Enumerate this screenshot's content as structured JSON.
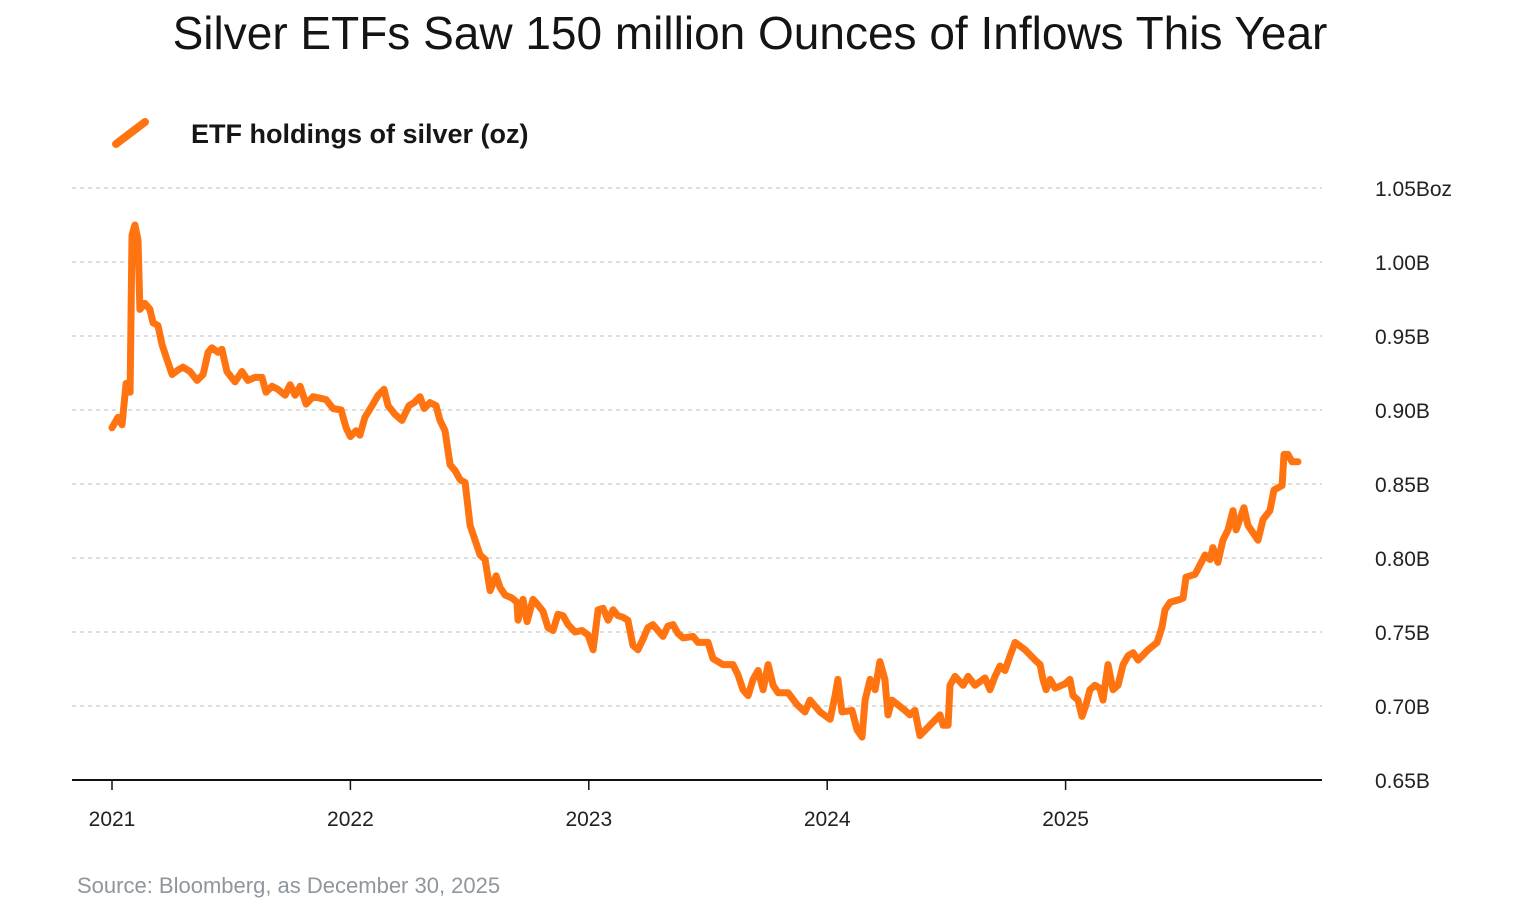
{
  "chart_data": {
    "type": "line",
    "title": "Silver ETFs Saw 150 million Ounces of Inflows This Year",
    "xlabel": "",
    "ylabel": "",
    "source": "Source: Bloomberg, as December 30, 2025",
    "legend": {
      "placement": "top-left",
      "entries": [
        "ETF holdings of silver (oz)"
      ]
    },
    "grid": true,
    "xlim": [
      2020.83,
      2026.07
    ],
    "ylim": [
      0.65,
      1.05
    ],
    "x_ticks": [
      2021,
      2022,
      2023,
      2024,
      2025
    ],
    "x_tick_labels": [
      "2021",
      "2022",
      "2023",
      "2024",
      "2025"
    ],
    "y_ticks": [
      0.65,
      0.7,
      0.75,
      0.8,
      0.85,
      0.9,
      0.95,
      1.0,
      1.05
    ],
    "y_tick_labels": [
      "0.65B",
      "0.70B",
      "0.75B",
      "0.80B",
      "0.85B",
      "0.90B",
      "0.95B",
      "1.00B",
      "1.05Boz"
    ],
    "series": [
      {
        "name": "ETF holdings of silver (oz)",
        "color": "#ff7410",
        "unit": "billion oz",
        "points": [
          [
            2021.0,
            0.888
          ],
          [
            2021.025,
            0.895
          ],
          [
            2021.042,
            0.89
          ],
          [
            2021.059,
            0.918
          ],
          [
            2021.076,
            0.912
          ],
          [
            2021.084,
            1.018
          ],
          [
            2021.096,
            1.025
          ],
          [
            2021.109,
            1.015
          ],
          [
            2021.117,
            0.968
          ],
          [
            2021.138,
            0.972
          ],
          [
            2021.159,
            0.968
          ],
          [
            2021.172,
            0.959
          ],
          [
            2021.193,
            0.957
          ],
          [
            2021.21,
            0.944
          ],
          [
            2021.231,
            0.934
          ],
          [
            2021.252,
            0.924
          ],
          [
            2021.277,
            0.927
          ],
          [
            2021.298,
            0.929
          ],
          [
            2021.327,
            0.926
          ],
          [
            2021.357,
            0.92
          ],
          [
            2021.382,
            0.924
          ],
          [
            2021.403,
            0.939
          ],
          [
            2021.419,
            0.942
          ],
          [
            2021.445,
            0.939
          ],
          [
            2021.461,
            0.941
          ],
          [
            2021.482,
            0.926
          ],
          [
            2021.516,
            0.919
          ],
          [
            2021.545,
            0.926
          ],
          [
            2021.57,
            0.92
          ],
          [
            2021.6,
            0.922
          ],
          [
            2021.629,
            0.922
          ],
          [
            2021.646,
            0.912
          ],
          [
            2021.671,
            0.916
          ],
          [
            2021.696,
            0.914
          ],
          [
            2021.726,
            0.91
          ],
          [
            2021.747,
            0.917
          ],
          [
            2021.768,
            0.91
          ],
          [
            2021.789,
            0.916
          ],
          [
            2021.814,
            0.904
          ],
          [
            2021.843,
            0.909
          ],
          [
            2021.873,
            0.908
          ],
          [
            2021.898,
            0.907
          ],
          [
            2021.927,
            0.901
          ],
          [
            2021.961,
            0.9
          ],
          [
            2021.982,
            0.888
          ],
          [
            2022.0,
            0.882
          ],
          [
            2022.024,
            0.886
          ],
          [
            2022.04,
            0.883
          ],
          [
            2022.061,
            0.895
          ],
          [
            2022.091,
            0.903
          ],
          [
            2022.116,
            0.91
          ],
          [
            2022.141,
            0.914
          ],
          [
            2022.158,
            0.903
          ],
          [
            2022.187,
            0.897
          ],
          [
            2022.216,
            0.893
          ],
          [
            2022.246,
            0.903
          ],
          [
            2022.267,
            0.905
          ],
          [
            2022.292,
            0.909
          ],
          [
            2022.309,
            0.901
          ],
          [
            2022.334,
            0.905
          ],
          [
            2022.359,
            0.903
          ],
          [
            2022.376,
            0.893
          ],
          [
            2022.397,
            0.886
          ],
          [
            2022.418,
            0.863
          ],
          [
            2022.439,
            0.859
          ],
          [
            2022.46,
            0.853
          ],
          [
            2022.481,
            0.851
          ],
          [
            2022.502,
            0.822
          ],
          [
            2022.523,
            0.812
          ],
          [
            2022.544,
            0.802
          ],
          [
            2022.565,
            0.799
          ],
          [
            2022.586,
            0.778
          ],
          [
            2022.611,
            0.788
          ],
          [
            2022.628,
            0.78
          ],
          [
            2022.649,
            0.775
          ],
          [
            2022.678,
            0.773
          ],
          [
            2022.699,
            0.77
          ],
          [
            2022.703,
            0.758
          ],
          [
            2022.724,
            0.772
          ],
          [
            2022.741,
            0.757
          ],
          [
            2022.766,
            0.772
          ],
          [
            2022.783,
            0.769
          ],
          [
            2022.808,
            0.764
          ],
          [
            2022.829,
            0.753
          ],
          [
            2022.85,
            0.751
          ],
          [
            2022.871,
            0.762
          ],
          [
            2022.892,
            0.761
          ],
          [
            2022.913,
            0.755
          ],
          [
            2022.942,
            0.75
          ],
          [
            2022.971,
            0.751
          ],
          [
            2022.997,
            0.748
          ],
          [
            2023.018,
            0.738
          ],
          [
            2023.039,
            0.765
          ],
          [
            2023.06,
            0.766
          ],
          [
            2023.081,
            0.758
          ],
          [
            2023.102,
            0.765
          ],
          [
            2023.122,
            0.761
          ],
          [
            2023.143,
            0.76
          ],
          [
            2023.164,
            0.758
          ],
          [
            2023.185,
            0.741
          ],
          [
            2023.206,
            0.738
          ],
          [
            2023.227,
            0.745
          ],
          [
            2023.248,
            0.753
          ],
          [
            2023.269,
            0.755
          ],
          [
            2023.29,
            0.751
          ],
          [
            2023.311,
            0.747
          ],
          [
            2023.332,
            0.754
          ],
          [
            2023.353,
            0.755
          ],
          [
            2023.374,
            0.749
          ],
          [
            2023.395,
            0.746
          ],
          [
            2023.437,
            0.747
          ],
          [
            2023.458,
            0.743
          ],
          [
            2023.5,
            0.743
          ],
          [
            2023.521,
            0.732
          ],
          [
            2023.563,
            0.728
          ],
          [
            2023.605,
            0.728
          ],
          [
            2023.626,
            0.721
          ],
          [
            2023.647,
            0.711
          ],
          [
            2023.668,
            0.707
          ],
          [
            2023.689,
            0.718
          ],
          [
            2023.71,
            0.724
          ],
          [
            2023.731,
            0.711
          ],
          [
            2023.752,
            0.728
          ],
          [
            2023.773,
            0.714
          ],
          [
            2023.794,
            0.709
          ],
          [
            2023.836,
            0.709
          ],
          [
            2023.873,
            0.701
          ],
          [
            2023.907,
            0.696
          ],
          [
            2023.928,
            0.704
          ],
          [
            2023.97,
            0.696
          ],
          [
            2024.012,
            0.691
          ],
          [
            2024.033,
            0.707
          ],
          [
            2024.045,
            0.718
          ],
          [
            2024.062,
            0.696
          ],
          [
            2024.104,
            0.697
          ],
          [
            2024.125,
            0.684
          ],
          [
            2024.146,
            0.679
          ],
          [
            2024.159,
            0.704
          ],
          [
            2024.18,
            0.718
          ],
          [
            2024.201,
            0.711
          ],
          [
            2024.221,
            0.73
          ],
          [
            2024.242,
            0.718
          ],
          [
            2024.255,
            0.694
          ],
          [
            2024.272,
            0.704
          ],
          [
            2024.326,
            0.697
          ],
          [
            2024.347,
            0.694
          ],
          [
            2024.368,
            0.697
          ],
          [
            2024.389,
            0.68
          ],
          [
            2024.431,
            0.687
          ],
          [
            2024.473,
            0.694
          ],
          [
            2024.486,
            0.687
          ],
          [
            2024.507,
            0.687
          ],
          [
            2024.515,
            0.714
          ],
          [
            2024.536,
            0.72
          ],
          [
            2024.57,
            0.714
          ],
          [
            2024.591,
            0.72
          ],
          [
            2024.62,
            0.714
          ],
          [
            2024.662,
            0.719
          ],
          [
            2024.683,
            0.711
          ],
          [
            2024.704,
            0.72
          ],
          [
            2024.725,
            0.727
          ],
          [
            2024.746,
            0.724
          ],
          [
            2024.767,
            0.734
          ],
          [
            2024.788,
            0.743
          ],
          [
            2024.83,
            0.738
          ],
          [
            2024.872,
            0.731
          ],
          [
            2024.893,
            0.728
          ],
          [
            2024.905,
            0.718
          ],
          [
            2024.918,
            0.711
          ],
          [
            2024.935,
            0.718
          ],
          [
            2024.956,
            0.712
          ],
          [
            2024.998,
            0.715
          ],
          [
            2025.018,
            0.718
          ],
          [
            2025.031,
            0.707
          ],
          [
            2025.052,
            0.704
          ],
          [
            2025.069,
            0.693
          ],
          [
            2025.086,
            0.701
          ],
          [
            2025.102,
            0.711
          ],
          [
            2025.123,
            0.714
          ],
          [
            2025.144,
            0.712
          ],
          [
            2025.157,
            0.704
          ],
          [
            2025.178,
            0.728
          ],
          [
            2025.199,
            0.711
          ],
          [
            2025.22,
            0.714
          ],
          [
            2025.241,
            0.728
          ],
          [
            2025.262,
            0.734
          ],
          [
            2025.283,
            0.736
          ],
          [
            2025.304,
            0.731
          ],
          [
            2025.346,
            0.738
          ],
          [
            2025.384,
            0.743
          ],
          [
            2025.404,
            0.753
          ],
          [
            2025.417,
            0.765
          ],
          [
            2025.438,
            0.77
          ],
          [
            2025.48,
            0.772
          ],
          [
            2025.493,
            0.773
          ],
          [
            2025.505,
            0.787
          ],
          [
            2025.543,
            0.789
          ],
          [
            2025.585,
            0.802
          ],
          [
            2025.606,
            0.799
          ],
          [
            2025.618,
            0.807
          ],
          [
            2025.639,
            0.797
          ],
          [
            2025.66,
            0.812
          ],
          [
            2025.681,
            0.819
          ],
          [
            2025.702,
            0.832
          ],
          [
            2025.715,
            0.819
          ],
          [
            2025.748,
            0.834
          ],
          [
            2025.765,
            0.822
          ],
          [
            2025.807,
            0.812
          ],
          [
            2025.828,
            0.826
          ],
          [
            2025.857,
            0.832
          ],
          [
            2025.874,
            0.846
          ],
          [
            2025.908,
            0.849
          ],
          [
            2025.916,
            0.87
          ],
          [
            2025.933,
            0.87
          ],
          [
            2025.95,
            0.865
          ],
          [
            2025.975,
            0.865
          ]
        ]
      }
    ]
  }
}
